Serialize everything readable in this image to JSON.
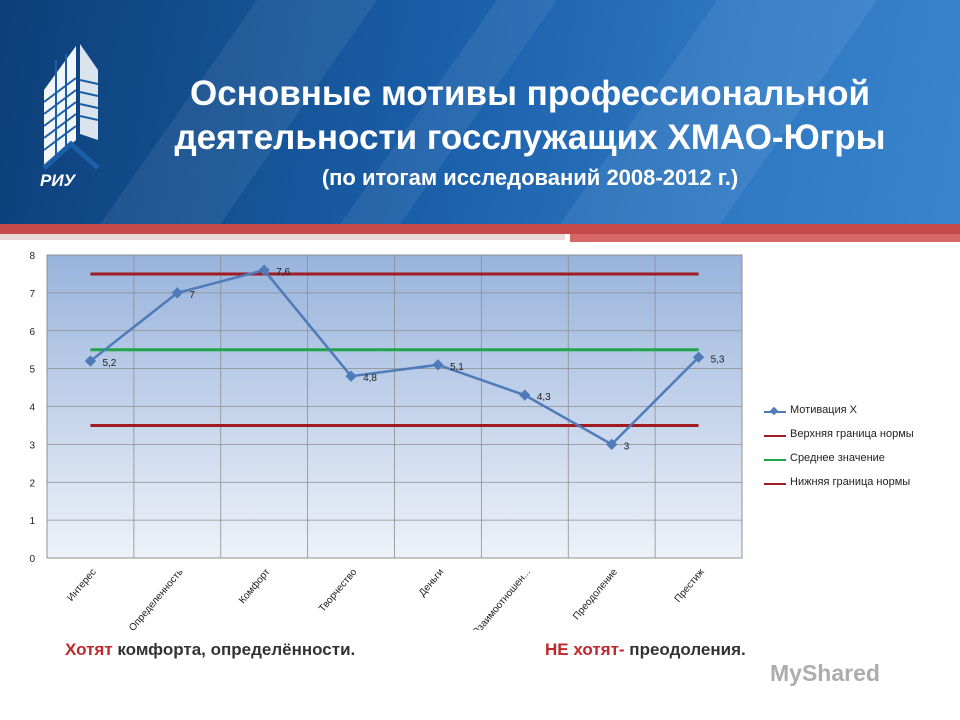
{
  "header": {
    "title_line1": "Основные мотивы профессиональной",
    "title_line2": "деятельности госслужащих ХМАО-Югры",
    "subtitle": "(по итогам исследований 2008-2012 г.)",
    "logo_text": "РИУ"
  },
  "chart_data": {
    "type": "line",
    "categories": [
      "Интерес",
      "Определенность",
      "Комфорт",
      "Творчество",
      "Деньги",
      "Взаимоотношен...",
      "Преодоление",
      "Престиж"
    ],
    "series": [
      {
        "name": "Мотивация Х",
        "values": [
          5.2,
          7,
          7.6,
          4.8,
          5.1,
          4.3,
          3,
          5.3
        ],
        "labels": [
          "5,2",
          "7",
          "7,6",
          "4,8",
          "5,1",
          "4,3",
          "3",
          "5,3"
        ],
        "color": "#4f7bb8",
        "marker": "diamond"
      },
      {
        "name": "Верхняя граница нормы",
        "values": [
          7.5,
          7.5,
          7.5,
          7.5,
          7.5,
          7.5,
          7.5,
          7.5
        ],
        "color": "#a01c22"
      },
      {
        "name": "Среднее значение",
        "values": [
          5.5,
          5.5,
          5.5,
          5.5,
          5.5,
          5.5,
          5.5,
          5.5
        ],
        "color": "#1fa64a"
      },
      {
        "name": "Нижняя граница нормы",
        "values": [
          3.5,
          3.5,
          3.5,
          3.5,
          3.5,
          3.5,
          3.5,
          3.5
        ],
        "color": "#a01c22"
      }
    ],
    "ylim": [
      0,
      8
    ],
    "yticks": [
      "0",
      "1",
      "2",
      "3",
      "4",
      "5",
      "6",
      "7",
      "8"
    ],
    "grid": true,
    "legend": "right"
  },
  "caption": {
    "left_prefix": "Хотят",
    "left_text": " комфорта, определённости.",
    "right_prefix": "НЕ хотят-",
    "right_text": "  преодоления."
  },
  "watermark": "MyShared"
}
